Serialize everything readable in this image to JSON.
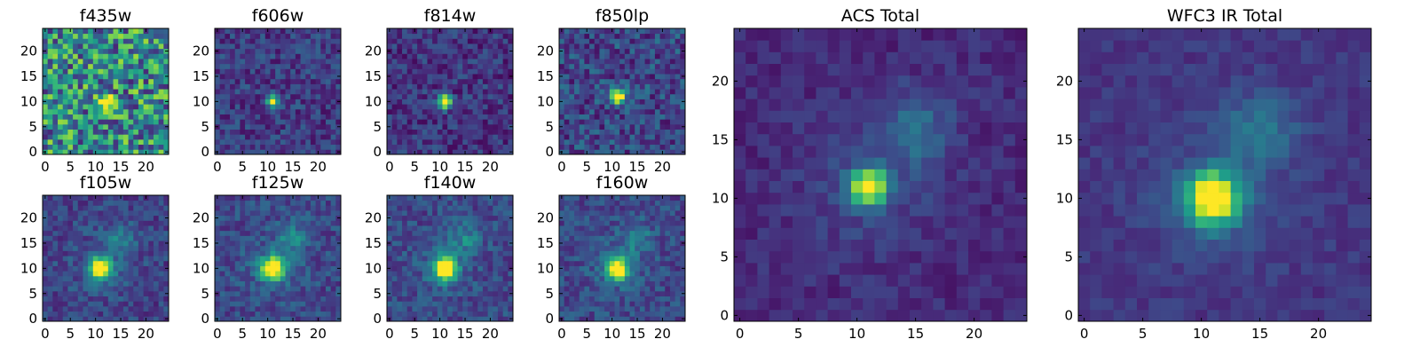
{
  "chart_data": [
    {
      "type": "heatmap",
      "title": "f435w",
      "xlim": [
        0,
        25
      ],
      "ylim": [
        0,
        25
      ],
      "xticks": [
        "0",
        "5",
        "10",
        "15",
        "20"
      ],
      "yticks": [
        "0",
        "5",
        "10",
        "15",
        "20"
      ],
      "peak": [
        12,
        10
      ],
      "sigma": 0.9,
      "peak_level": 1.0,
      "noise": 0.38,
      "background": 0.48,
      "extended": false
    },
    {
      "type": "heatmap",
      "title": "f606w",
      "xlim": [
        0,
        25
      ],
      "ylim": [
        0,
        25
      ],
      "xticks": [
        "0",
        "5",
        "10",
        "15",
        "20"
      ],
      "yticks": [
        "0",
        "5",
        "10",
        "15",
        "20"
      ],
      "peak": [
        11,
        10
      ],
      "sigma": 0.8,
      "peak_level": 1.0,
      "noise": 0.14,
      "background": 0.18,
      "extended": false
    },
    {
      "type": "heatmap",
      "title": "f814w",
      "xlim": [
        0,
        25
      ],
      "ylim": [
        0,
        25
      ],
      "xticks": [
        "0",
        "5",
        "10",
        "15",
        "20"
      ],
      "yticks": [
        "0",
        "5",
        "10",
        "15",
        "20"
      ],
      "peak": [
        11,
        10
      ],
      "sigma": 0.9,
      "peak_level": 1.0,
      "noise": 0.14,
      "background": 0.16,
      "extended": false
    },
    {
      "type": "heatmap",
      "title": "f850lp",
      "xlim": [
        0,
        25
      ],
      "ylim": [
        0,
        25
      ],
      "xticks": [
        "0",
        "5",
        "10",
        "15",
        "20"
      ],
      "yticks": [
        "0",
        "5",
        "10",
        "15",
        "20"
      ],
      "peak": [
        11,
        11
      ],
      "sigma": 1.0,
      "peak_level": 1.0,
      "noise": 0.18,
      "background": 0.22,
      "extended": false
    },
    {
      "type": "heatmap",
      "title": "f105w",
      "xlim": [
        0,
        25
      ],
      "ylim": [
        0,
        25
      ],
      "xticks": [
        "0",
        "5",
        "10",
        "15",
        "20"
      ],
      "yticks": [
        "0",
        "5",
        "10",
        "15",
        "20"
      ],
      "peak": [
        11,
        10
      ],
      "sigma": 1.4,
      "peak_level": 1.0,
      "noise": 0.12,
      "background": 0.2,
      "extended": true
    },
    {
      "type": "heatmap",
      "title": "f125w",
      "xlim": [
        0,
        25
      ],
      "ylim": [
        0,
        25
      ],
      "xticks": [
        "0",
        "5",
        "10",
        "15",
        "20"
      ],
      "yticks": [
        "0",
        "5",
        "10",
        "15",
        "20"
      ],
      "peak": [
        11,
        10
      ],
      "sigma": 1.5,
      "peak_level": 1.0,
      "noise": 0.12,
      "background": 0.22,
      "extended": true
    },
    {
      "type": "heatmap",
      "title": "f140w",
      "xlim": [
        0,
        25
      ],
      "ylim": [
        0,
        25
      ],
      "xticks": [
        "0",
        "5",
        "10",
        "15",
        "20"
      ],
      "yticks": [
        "0",
        "5",
        "10",
        "15",
        "20"
      ],
      "peak": [
        11,
        10
      ],
      "sigma": 1.5,
      "peak_level": 1.0,
      "noise": 0.12,
      "background": 0.22,
      "extended": true
    },
    {
      "type": "heatmap",
      "title": "f160w",
      "xlim": [
        0,
        25
      ],
      "ylim": [
        0,
        25
      ],
      "xticks": [
        "0",
        "5",
        "10",
        "15",
        "20"
      ],
      "yticks": [
        "0",
        "5",
        "10",
        "15",
        "20"
      ],
      "peak": [
        11,
        10
      ],
      "sigma": 1.4,
      "peak_level": 1.0,
      "noise": 0.12,
      "background": 0.22,
      "extended": true
    },
    {
      "type": "heatmap",
      "title": "ACS Total",
      "xlim": [
        0,
        25
      ],
      "ylim": [
        0,
        25
      ],
      "xticks": [
        "0",
        "5",
        "10",
        "15",
        "20"
      ],
      "yticks": [
        "0",
        "5",
        "10",
        "15",
        "20"
      ],
      "peak": [
        11,
        11
      ],
      "sigma": 1.0,
      "peak_level": 1.0,
      "noise": 0.07,
      "background": 0.12,
      "extended": true
    },
    {
      "type": "heatmap",
      "title": "WFC3 IR Total",
      "xlim": [
        0,
        25
      ],
      "ylim": [
        0,
        25
      ],
      "xticks": [
        "0",
        "5",
        "10",
        "15",
        "20"
      ],
      "yticks": [
        "0",
        "5",
        "10",
        "15",
        "20"
      ],
      "peak": [
        11,
        10
      ],
      "sigma": 1.5,
      "peak_level": 1.0,
      "noise": 0.06,
      "background": 0.16,
      "extended": true
    }
  ],
  "colormap": [
    "#440154",
    "#482878",
    "#3e4989",
    "#31688e",
    "#26828e",
    "#1f9e89",
    "#35b779",
    "#6ece58",
    "#b5de2b",
    "#fde725"
  ]
}
